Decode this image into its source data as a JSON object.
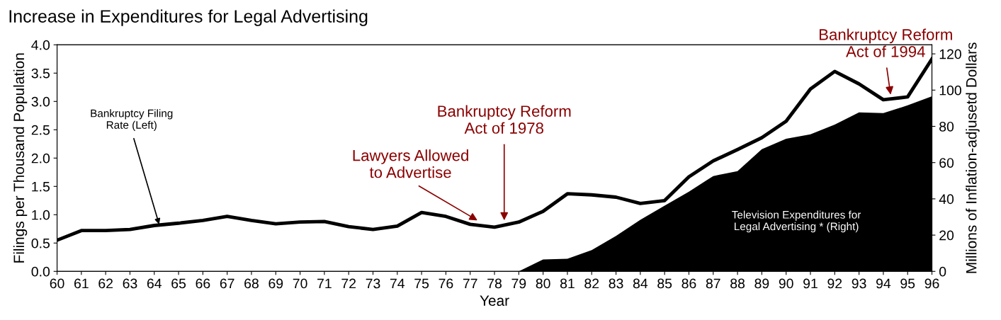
{
  "chart_data": {
    "type": "line",
    "title": "Increase in Expenditures for Legal Advertising",
    "xlabel": "Year",
    "ylabel": "Filings per Thousand Population",
    "y2label": "Millions of Inflation-adjusetd Dollars",
    "x": [
      60,
      61,
      62,
      63,
      64,
      65,
      66,
      67,
      68,
      69,
      70,
      71,
      72,
      73,
      74,
      75,
      76,
      77,
      78,
      79,
      80,
      81,
      82,
      83,
      84,
      85,
      86,
      87,
      88,
      89,
      90,
      91,
      92,
      93,
      94,
      95,
      96
    ],
    "xlim": [
      60,
      96
    ],
    "xticks": [
      60,
      61,
      62,
      63,
      64,
      65,
      66,
      67,
      68,
      69,
      70,
      71,
      72,
      73,
      74,
      75,
      76,
      77,
      78,
      79,
      80,
      81,
      82,
      83,
      84,
      85,
      86,
      87,
      88,
      89,
      90,
      91,
      92,
      93,
      94,
      95,
      96
    ],
    "ylim": [
      0,
      4
    ],
    "yticks": [
      {
        "value": 0,
        "label": "0.0"
      },
      {
        "value": 0.5,
        "label": "0.5"
      },
      {
        "value": 1,
        "label": "1.0"
      },
      {
        "value": 1.5,
        "label": "1.5"
      },
      {
        "value": 2,
        "label": "2.0"
      },
      {
        "value": 2.5,
        "label": "2.5"
      },
      {
        "value": 3,
        "label": "3.0"
      },
      {
        "value": 3.5,
        "label": "3.5"
      },
      {
        "value": 4,
        "label": "4.0"
      }
    ],
    "y2lim": [
      0,
      125
    ],
    "y2ticks": [
      0,
      20,
      40,
      60,
      80,
      100,
      120
    ],
    "series": [
      {
        "type": "area",
        "axis": "y2",
        "color": "#000000",
        "values": [
          0,
          0,
          0,
          0,
          0,
          0,
          0,
          0,
          0,
          0,
          0,
          0,
          0,
          0,
          0,
          0,
          0,
          0,
          0,
          0,
          6.6,
          7,
          11.7,
          19.5,
          28.4,
          36.2,
          44,
          52.6,
          55.3,
          67.4,
          73.2,
          75.6,
          81,
          87.7,
          87.3,
          91.6,
          96.6
        ]
      },
      {
        "axis": "y",
        "color": "#000000",
        "values": [
          0.55,
          0.72,
          0.72,
          0.74,
          0.81,
          0.85,
          0.9,
          0.97,
          0.9,
          0.84,
          0.87,
          0.88,
          0.79,
          0.74,
          0.8,
          1.04,
          0.97,
          0.83,
          0.78,
          0.87,
          1.06,
          1.37,
          1.35,
          1.31,
          1.2,
          1.25,
          1.67,
          1.95,
          2.15,
          2.36,
          2.65,
          3.22,
          3.53,
          3.31,
          3.03,
          3.08,
          3.75
        ]
      }
    ],
    "annotations": [
      {
        "text": "Bankruptcy Filing\nRate (Left)",
        "x": 64.2,
        "y": 0.83
      },
      {
        "text": "Lawyers Allowed\nto Advertise",
        "x": 77.3,
        "y": 0.9
      },
      {
        "text": "Bankruptcy Reform\nAct of 1978",
        "x": 78.4,
        "y": 0.9
      },
      {
        "text": "Bankruptcy Reform\nAct of 1994",
        "x": 94.3,
        "y": 3.12
      },
      "Television Expenditures for\nLegal Advertising * (Right)"
    ],
    "grid": false,
    "legend": false
  }
}
